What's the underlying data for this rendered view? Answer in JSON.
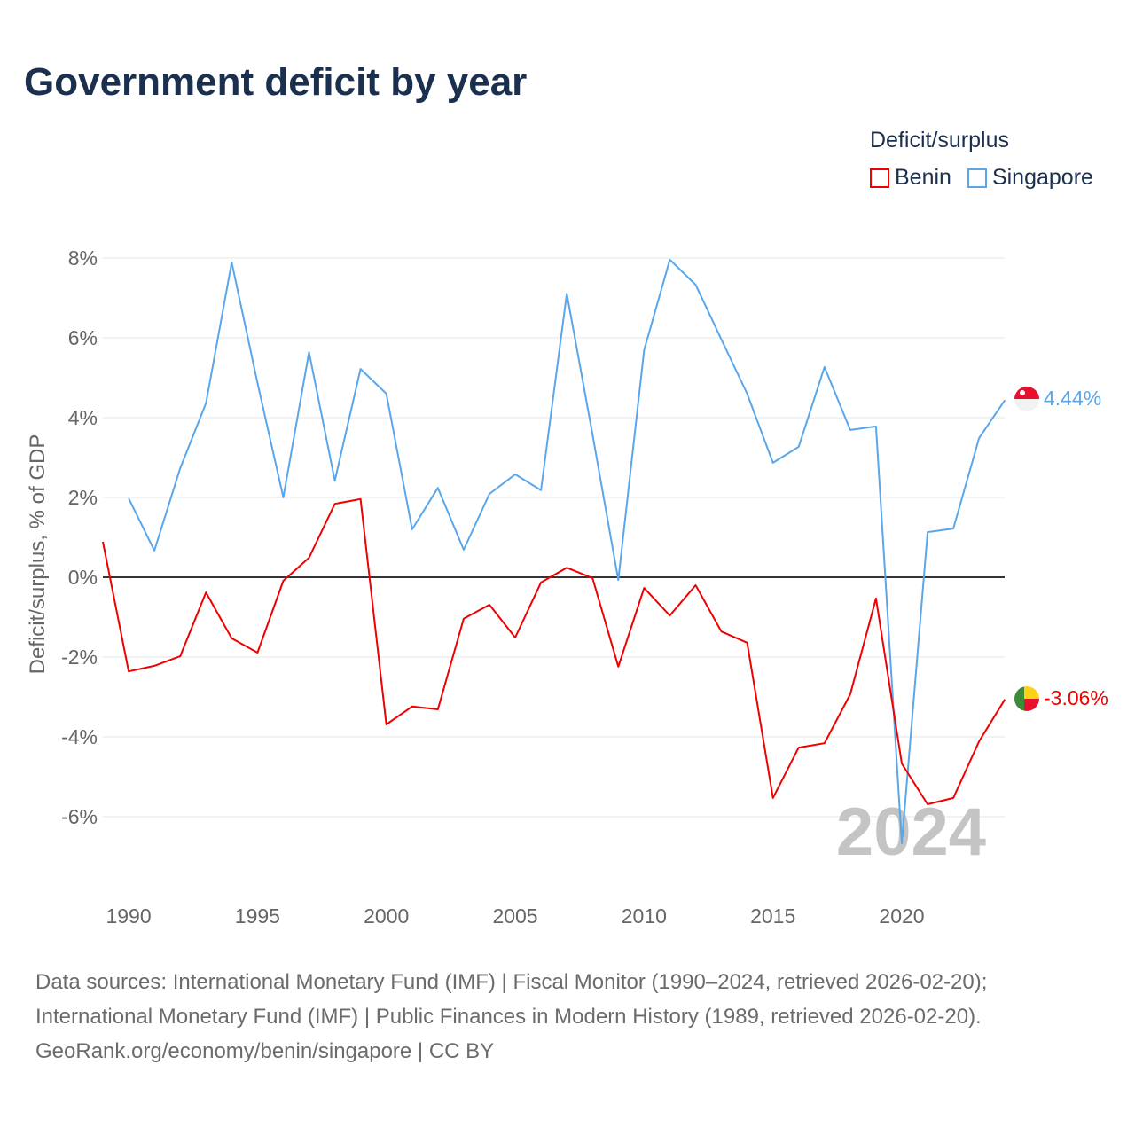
{
  "title": "Government deficit by year",
  "legend": {
    "title": "Deficit/surplus",
    "items": [
      {
        "name": "Benin",
        "color": "#f00000"
      },
      {
        "name": "Singapore",
        "color": "#5aa6ea"
      }
    ]
  },
  "watermark_year": "2024",
  "end_labels": {
    "singapore": "4.44%",
    "benin": "-3.06%"
  },
  "sources": [
    "Data sources: International Monetary Fund (IMF) | Fiscal Monitor (1990–2024, retrieved 2026-02-20);",
    "International Monetary Fund (IMF) | Public Finances in Modern History (1989, retrieved 2026-02-20).",
    "GeoRank.org/economy/benin/singapore | CC BY"
  ],
  "chart_data": {
    "type": "line",
    "title": "Government deficit by year",
    "xlabel": "",
    "ylabel": "Deficit/surplus, % of GDP",
    "xlim": [
      1989,
      2024
    ],
    "ylim": [
      -8,
      8.5
    ],
    "xticks": [
      1990,
      1995,
      2000,
      2005,
      2010,
      2015,
      2020
    ],
    "yticks": [
      -6,
      -4,
      -2,
      0,
      2,
      4,
      6,
      8
    ],
    "ytick_labels": [
      "-6%",
      "-4%",
      "-2%",
      "0%",
      "2%",
      "4%",
      "6%",
      "8%"
    ],
    "legend_position": "top-right",
    "series": [
      {
        "name": "Benin",
        "color": "#f00000",
        "start_year": 1989,
        "values": [
          0.89,
          -2.36,
          -2.22,
          -1.98,
          -0.38,
          -1.53,
          -1.89,
          -0.09,
          0.49,
          1.84,
          1.96,
          -3.69,
          -3.24,
          -3.31,
          -1.04,
          -0.69,
          -1.51,
          -0.13,
          0.24,
          -0.02,
          -2.24,
          -0.27,
          -0.96,
          -0.2,
          -1.36,
          -1.64,
          -5.53,
          -4.27,
          -4.16,
          -2.93,
          -0.53,
          -4.67,
          -5.69,
          -5.53,
          -4.11,
          -3.06
        ]
      },
      {
        "name": "Singapore",
        "color": "#5aa6ea",
        "start_year": 1990,
        "values": [
          1.98,
          0.67,
          2.73,
          4.36,
          7.89,
          4.87,
          2.0,
          5.64,
          2.42,
          5.22,
          4.6,
          1.2,
          2.24,
          0.69,
          2.09,
          2.58,
          2.18,
          7.11,
          3.58,
          -0.07,
          5.69,
          7.96,
          7.33,
          5.96,
          4.6,
          2.87,
          3.27,
          5.27,
          3.69,
          3.78,
          -6.67,
          1.13,
          1.22,
          3.49,
          4.44
        ]
      }
    ]
  }
}
